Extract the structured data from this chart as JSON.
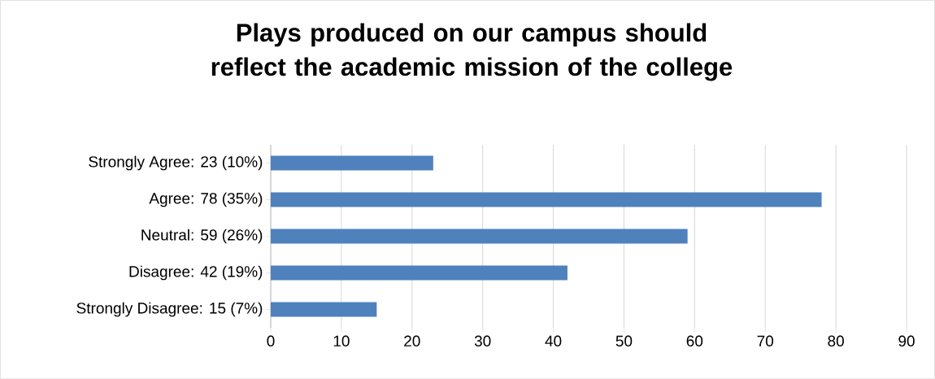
{
  "chart_data": {
    "type": "bar",
    "orientation": "horizontal",
    "title": "Plays produced on our campus should reflect the academic mission of the college",
    "categories": [
      "Strongly Agree: 23 (10%)",
      "Agree: 78 (35%)",
      "Neutral: 59 (26%)",
      "Disagree: 42 (19%)",
      "Strongly Disagree: 15 (7%)"
    ],
    "values": [
      23,
      78,
      59,
      42,
      15
    ],
    "color": "#4f81bd",
    "xlim": [
      0,
      90
    ],
    "xticks": [
      0,
      10,
      20,
      30,
      40,
      50,
      60,
      70,
      80,
      90
    ],
    "grid": "x"
  }
}
